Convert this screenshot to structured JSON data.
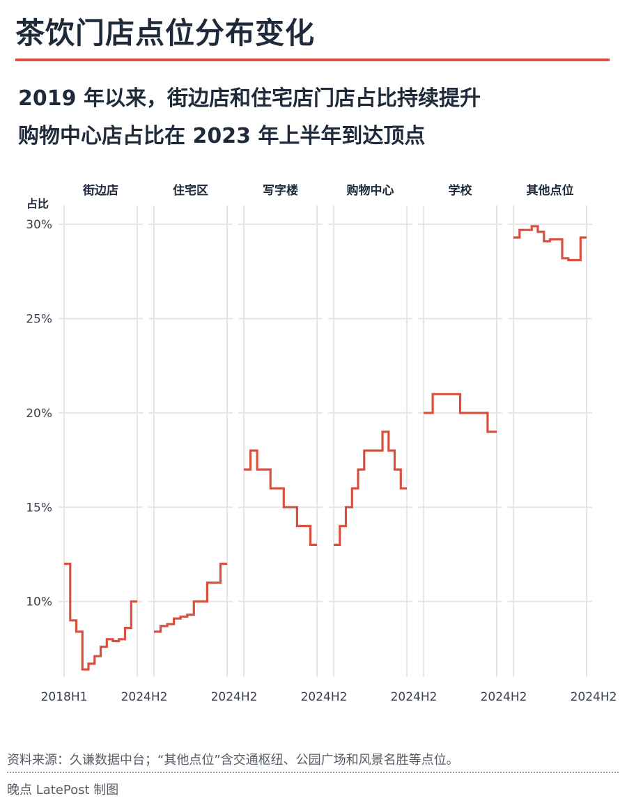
{
  "header": {
    "title": "茶饮门店点位分布变化",
    "subtitle_line1": "2019 年以来，街边店和住宅店门店占比持续提升",
    "subtitle_line2": "购物中心店占比在 2023 年上半年到达顶点"
  },
  "footer": {
    "note": "资料来源：久谦数据中台；“其他点位”含交通枢纽、公园广场和风景名胜等点位。",
    "credit": "晚点 LatePost 制图"
  },
  "colors": {
    "line": "#d9503f",
    "grid": "#e6e6e6",
    "text": "#1e2a3a",
    "accent_rule": "#d9503f"
  },
  "chart_data": {
    "type": "line",
    "step": true,
    "ylabel": "占比",
    "ylim": [
      6,
      31
    ],
    "yticks": [
      10,
      15,
      20,
      25,
      30
    ],
    "ytick_labels": [
      "10%",
      "15%",
      "20%",
      "25%",
      "30%"
    ],
    "x_start_label": "2018H1",
    "x_end_label": "2024H2",
    "grid": true,
    "panels": [
      {
        "name": "街边店",
        "values": [
          12,
          9,
          8.4,
          6.4,
          6.7,
          7.1,
          7.6,
          8.0,
          7.9,
          8.0,
          8.6,
          10.0
        ]
      },
      {
        "name": "住宅区",
        "values": [
          8.4,
          8.7,
          8.8,
          9.1,
          9.2,
          9.3,
          10.0,
          10.0,
          11.0,
          11.0,
          12.0
        ]
      },
      {
        "name": "写字楼",
        "values": [
          17,
          18,
          17,
          17,
          16,
          16,
          15,
          15,
          14,
          14,
          13
        ]
      },
      {
        "name": "购物中心",
        "values": [
          13,
          14,
          15,
          16,
          17,
          18,
          18,
          18,
          19,
          18,
          17,
          16
        ]
      },
      {
        "name": "学校",
        "values": [
          20,
          21,
          21,
          21,
          20,
          20,
          20,
          19
        ]
      },
      {
        "name": "其他点位",
        "values": [
          29.3,
          29.7,
          29.7,
          29.9,
          29.6,
          29.1,
          29.2,
          29.2,
          28.2,
          28.1,
          28.1,
          29.3
        ]
      }
    ]
  }
}
